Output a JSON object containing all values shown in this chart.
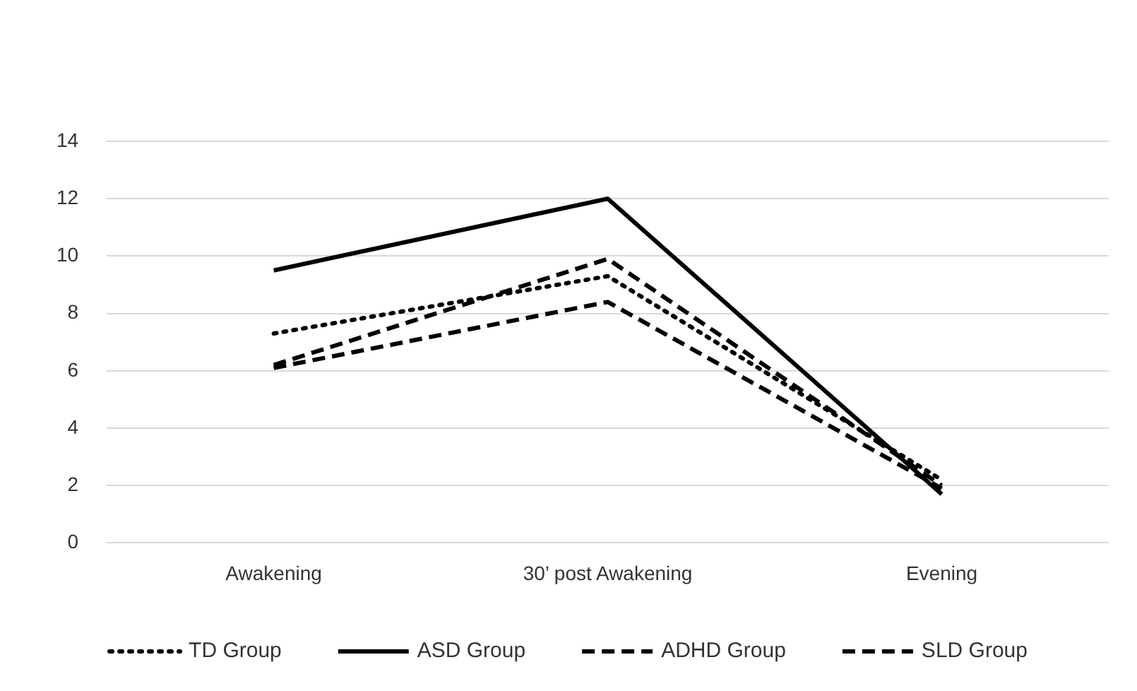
{
  "chart_data": {
    "type": "line",
    "categories": [
      "Awakening",
      "30’ post Awakening",
      "Evening"
    ],
    "series": [
      {
        "name": "TD Group",
        "color": "#000000",
        "line_style": "dotted",
        "values": [
          7.3,
          9.3,
          2.2
        ]
      },
      {
        "name": "ASD Group",
        "color": "#000000",
        "line_style": "solid",
        "values": [
          9.5,
          12.0,
          1.7
        ]
      },
      {
        "name": "ADHD Group",
        "color": "#000000",
        "line_style": "dashed",
        "values": [
          6.1,
          8.4,
          1.9
        ]
      },
      {
        "name": "SLD Group",
        "color": "#000000",
        "line_style": "dashed",
        "values": [
          6.2,
          9.9,
          2.0
        ]
      }
    ],
    "ylim": [
      0,
      14
    ],
    "yticks": [
      0,
      2,
      4,
      6,
      8,
      10,
      12,
      14
    ],
    "grid": "y",
    "legend": "bottom",
    "marker": "none"
  }
}
